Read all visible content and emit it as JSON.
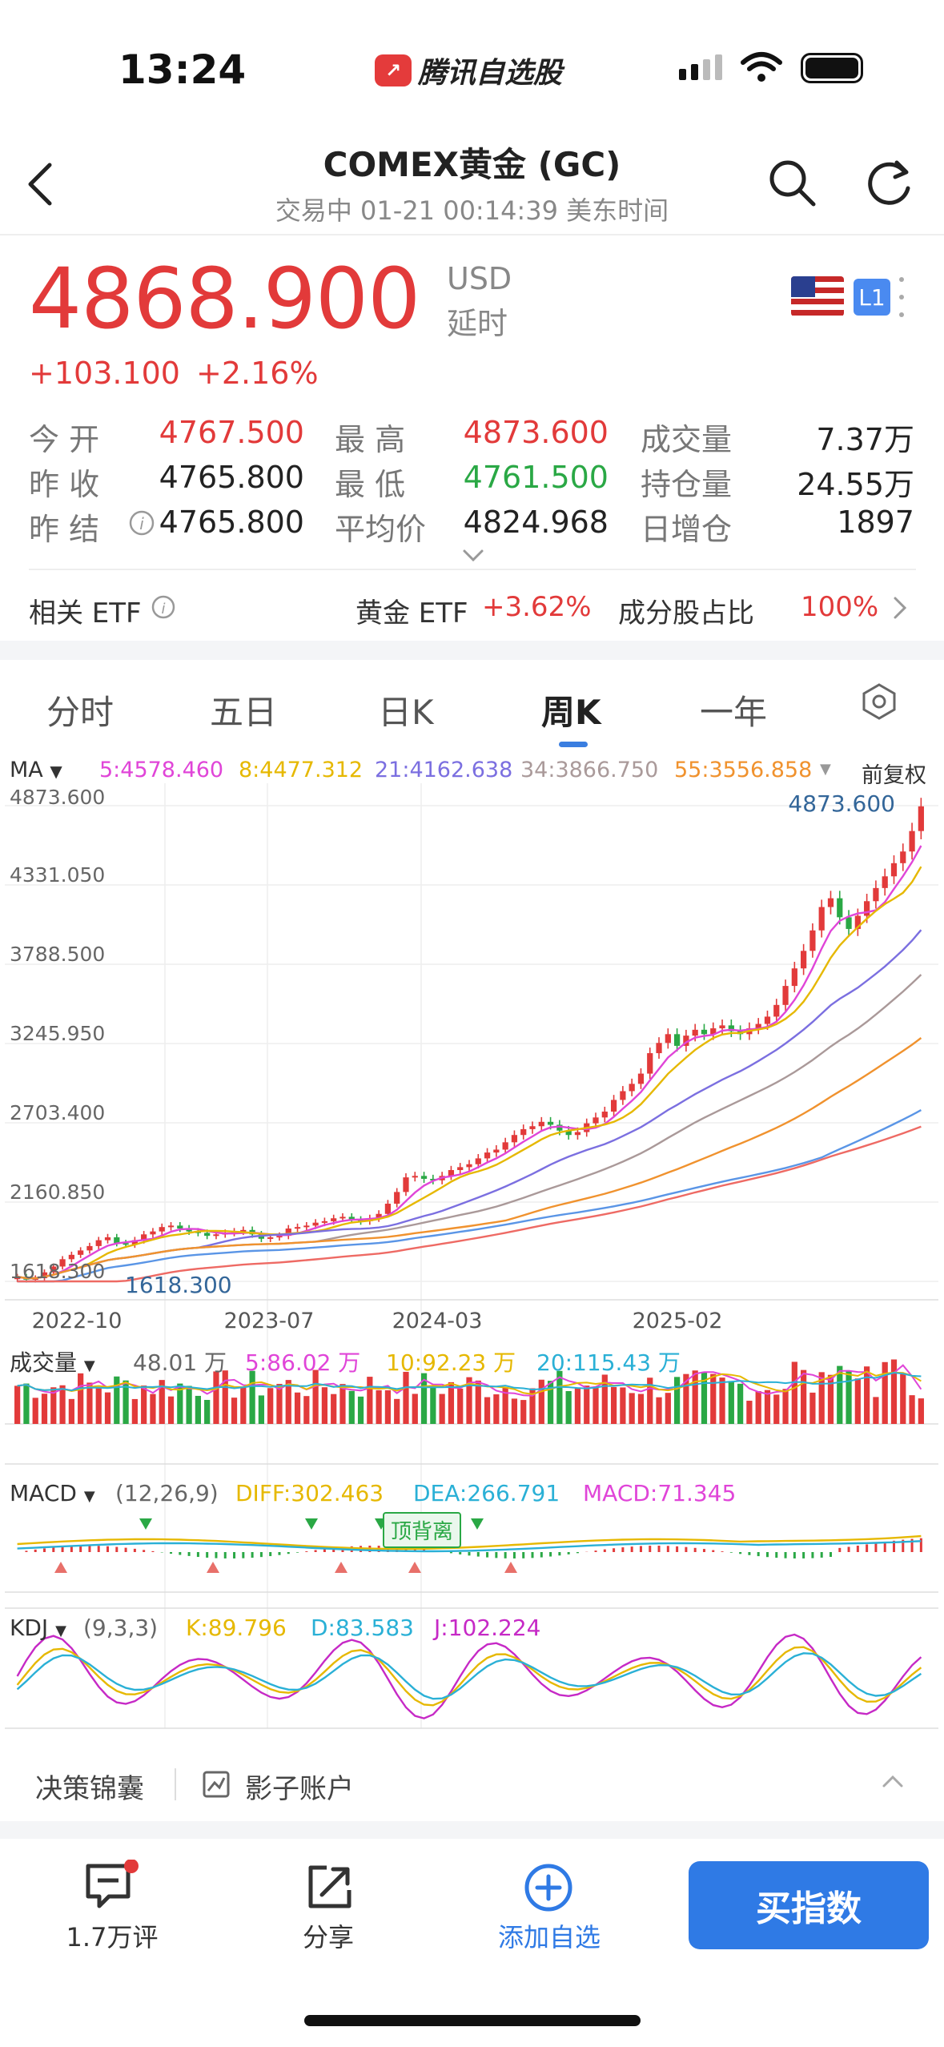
{
  "status_bar": {
    "time": "13:24",
    "app_name": "腾讯自选股",
    "logo_icon": "tencent-stock-logo"
  },
  "header": {
    "title": "COMEX黄金 (GC)",
    "subtitle": "交易中   01-21 00:14:39 美东时间"
  },
  "quote": {
    "price": "4868.900",
    "currency": "USD",
    "delay": "延时",
    "change": "+103.100",
    "change_pct": "+2.16%",
    "level": "L1",
    "colors": {
      "up": "#e23a3a",
      "down": "#2aa845",
      "accent": "#2f7ae5"
    }
  },
  "stats": {
    "open_label": "今  开",
    "open": "4767.500",
    "high_label": "最  高",
    "high": "4873.600",
    "volume_label": "成交量",
    "volume": "7.37万",
    "prev_close_label": "昨  收",
    "prev_close": "4765.800",
    "low_label": "最  低",
    "low": "4761.500",
    "oi_label": "持仓量",
    "oi": "24.55万",
    "prev_settle_label": "昨  结",
    "prev_settle": "4765.800",
    "avg_label": "平均价",
    "avg": "4824.968",
    "oi_change_label": "日增仓",
    "oi_change": "1897"
  },
  "etf": {
    "label": "相关 ETF",
    "gold_etf_label": "黄金 ETF",
    "gold_etf_value": "+3.62%",
    "component_label": "成分股占比",
    "component_value": "100%"
  },
  "tabs": [
    {
      "label": "分时"
    },
    {
      "label": "五日"
    },
    {
      "label": "日K"
    },
    {
      "label": "周K"
    },
    {
      "label": "一年"
    }
  ],
  "active_tab": "周K",
  "ma_bar": {
    "label": "MA",
    "ma5": "5:4578.460",
    "ma8": "8:4477.312",
    "ma21": "21:4162.638",
    "ma34": "34:3866.750",
    "ma55": "55:3556.858",
    "adjust": "前复权"
  },
  "chart_data": {
    "type": "candlestick",
    "price_axis_labels": [
      "4873.600",
      "4331.050",
      "3788.500",
      "3245.950",
      "2703.400",
      "2160.850",
      "1618.300"
    ],
    "ylim": [
      1618.3,
      4873.6
    ],
    "x_ticks": [
      "2022-10",
      "2023-07",
      "2024-03",
      "2025-02"
    ],
    "max_label": "4873.600",
    "min_label": "1618.300",
    "approx_weekly_close": [
      1650,
      1630,
      1640,
      1680,
      1720,
      1770,
      1800,
      1830,
      1860,
      1900,
      1920,
      1880,
      1870,
      1900,
      1940,
      1960,
      1990,
      2000,
      1980,
      1960,
      1950,
      1930,
      1940,
      1950,
      1960,
      1970,
      1940,
      1910,
      1920,
      1930,
      1980,
      1990,
      2000,
      2020,
      2030,
      2050,
      2060,
      2040,
      2030,
      2050,
      2080,
      2150,
      2230,
      2330,
      2340,
      2320,
      2310,
      2340,
      2380,
      2400,
      2420,
      2460,
      2500,
      2520,
      2570,
      2620,
      2660,
      2680,
      2710,
      2690,
      2650,
      2620,
      2640,
      2700,
      2740,
      2780,
      2860,
      2920,
      2970,
      3040,
      3180,
      3250,
      3310,
      3230,
      3300,
      3340,
      3310,
      3350,
      3370,
      3330,
      3310,
      3350,
      3380,
      3430,
      3510,
      3640,
      3760,
      3880,
      4020,
      4180,
      4240,
      4110,
      4030,
      4120,
      4220,
      4310,
      4390,
      4480,
      4560,
      4700,
      4869
    ],
    "series": [
      {
        "name": "MA5",
        "color": "#e045d8"
      },
      {
        "name": "MA8",
        "color": "#e6b800"
      },
      {
        "name": "MA21",
        "color": "#7b6fe0"
      },
      {
        "name": "MA34",
        "color": "#a99"
      },
      {
        "name": "MA55",
        "color": "#f0922e"
      }
    ]
  },
  "volume_panel": {
    "label": "成交量",
    "vol": "48.01 万",
    "v5": "5:86.02 万",
    "v10": "10:92.23 万",
    "v20": "20:115.43 万"
  },
  "macd_panel": {
    "label": "MACD",
    "params": "(12,26,9)",
    "diff": "DIFF:302.463",
    "dea": "DEA:266.791",
    "macd": "MACD:71.345",
    "divergence_tag": "顶背离"
  },
  "kdj_panel": {
    "label": "KDJ",
    "params": "(9,3,3)",
    "k": "K:89.796",
    "d": "D:83.583",
    "j": "J:102.224"
  },
  "tools": {
    "decision": "决策锦囊",
    "shadow": "影子账户"
  },
  "bottom_bar": {
    "comments": "1.7万评",
    "share": "分享",
    "watchlist": "添加自选",
    "buy": "买指数"
  }
}
